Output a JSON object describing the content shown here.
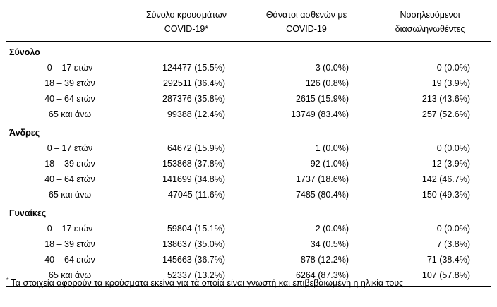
{
  "headers": {
    "col1_line1": "Σύνολο κρουσμάτων",
    "col1_line2": "COVID-19*",
    "col2_line1": "Θάνατοι ασθενών με",
    "col2_line2": "COVID-19",
    "col3_line1": "Νοσηλευόμενοι",
    "col3_line2": "διασωληνωθέντες"
  },
  "sections": [
    {
      "title": "Σύνολο",
      "rows": [
        {
          "label": "0 – 17 ετών",
          "cases": "124477 (15.5%)",
          "deaths": "3 (0.0%)",
          "intubated": "0 (0.0%)"
        },
        {
          "label": "18 – 39 ετών",
          "cases": "292511 (36.4%)",
          "deaths": "126 (0.8%)",
          "intubated": "19 (3.9%)"
        },
        {
          "label": "40 – 64 ετών",
          "cases": "287376 (35.8%)",
          "deaths": "2615 (15.9%)",
          "intubated": "213 (43.6%)"
        },
        {
          "label": "65 και άνω",
          "cases": "99388 (12.4%)",
          "deaths": "13749 (83.4%)",
          "intubated": "257 (52.6%)"
        }
      ]
    },
    {
      "title": "Άνδρες",
      "rows": [
        {
          "label": "0 – 17 ετών",
          "cases": "64672 (15.9%)",
          "deaths": "1 (0.0%)",
          "intubated": "0 (0.0%)"
        },
        {
          "label": "18 – 39 ετών",
          "cases": "153868 (37.8%)",
          "deaths": "92 (1.0%)",
          "intubated": "12 (3.9%)"
        },
        {
          "label": "40 – 64 ετών",
          "cases": "141699 (34.8%)",
          "deaths": "1737 (18.6%)",
          "intubated": "142 (46.7%)"
        },
        {
          "label": "65 και άνω",
          "cases": "47045 (11.6%)",
          "deaths": "7485 (80.4%)",
          "intubated": "150 (49.3%)"
        }
      ]
    },
    {
      "title": "Γυναίκες",
      "rows": [
        {
          "label": "0 – 17 ετών",
          "cases": "59804 (15.1%)",
          "deaths": "2 (0.0%)",
          "intubated": "0 (0.0%)"
        },
        {
          "label": "18 – 39 ετών",
          "cases": "138637 (35.0%)",
          "deaths": "34 (0.5%)",
          "intubated": "7 (3.8%)"
        },
        {
          "label": "40 – 64 ετών",
          "cases": "145663 (36.7%)",
          "deaths": "878 (12.2%)",
          "intubated": "71 (38.4%)"
        },
        {
          "label": "65 και άνω",
          "cases": "52337 (13.2%)",
          "deaths": "6264 (87.3%)",
          "intubated": "107 (57.8%)"
        }
      ]
    }
  ],
  "footnote": {
    "marker": "*",
    "text": "Τα στοιχεία αφορούν τα κρούσματα εκείνα για τα οποία είναι γνωστή και επιβεβαιωμένη η ηλικία τους"
  }
}
